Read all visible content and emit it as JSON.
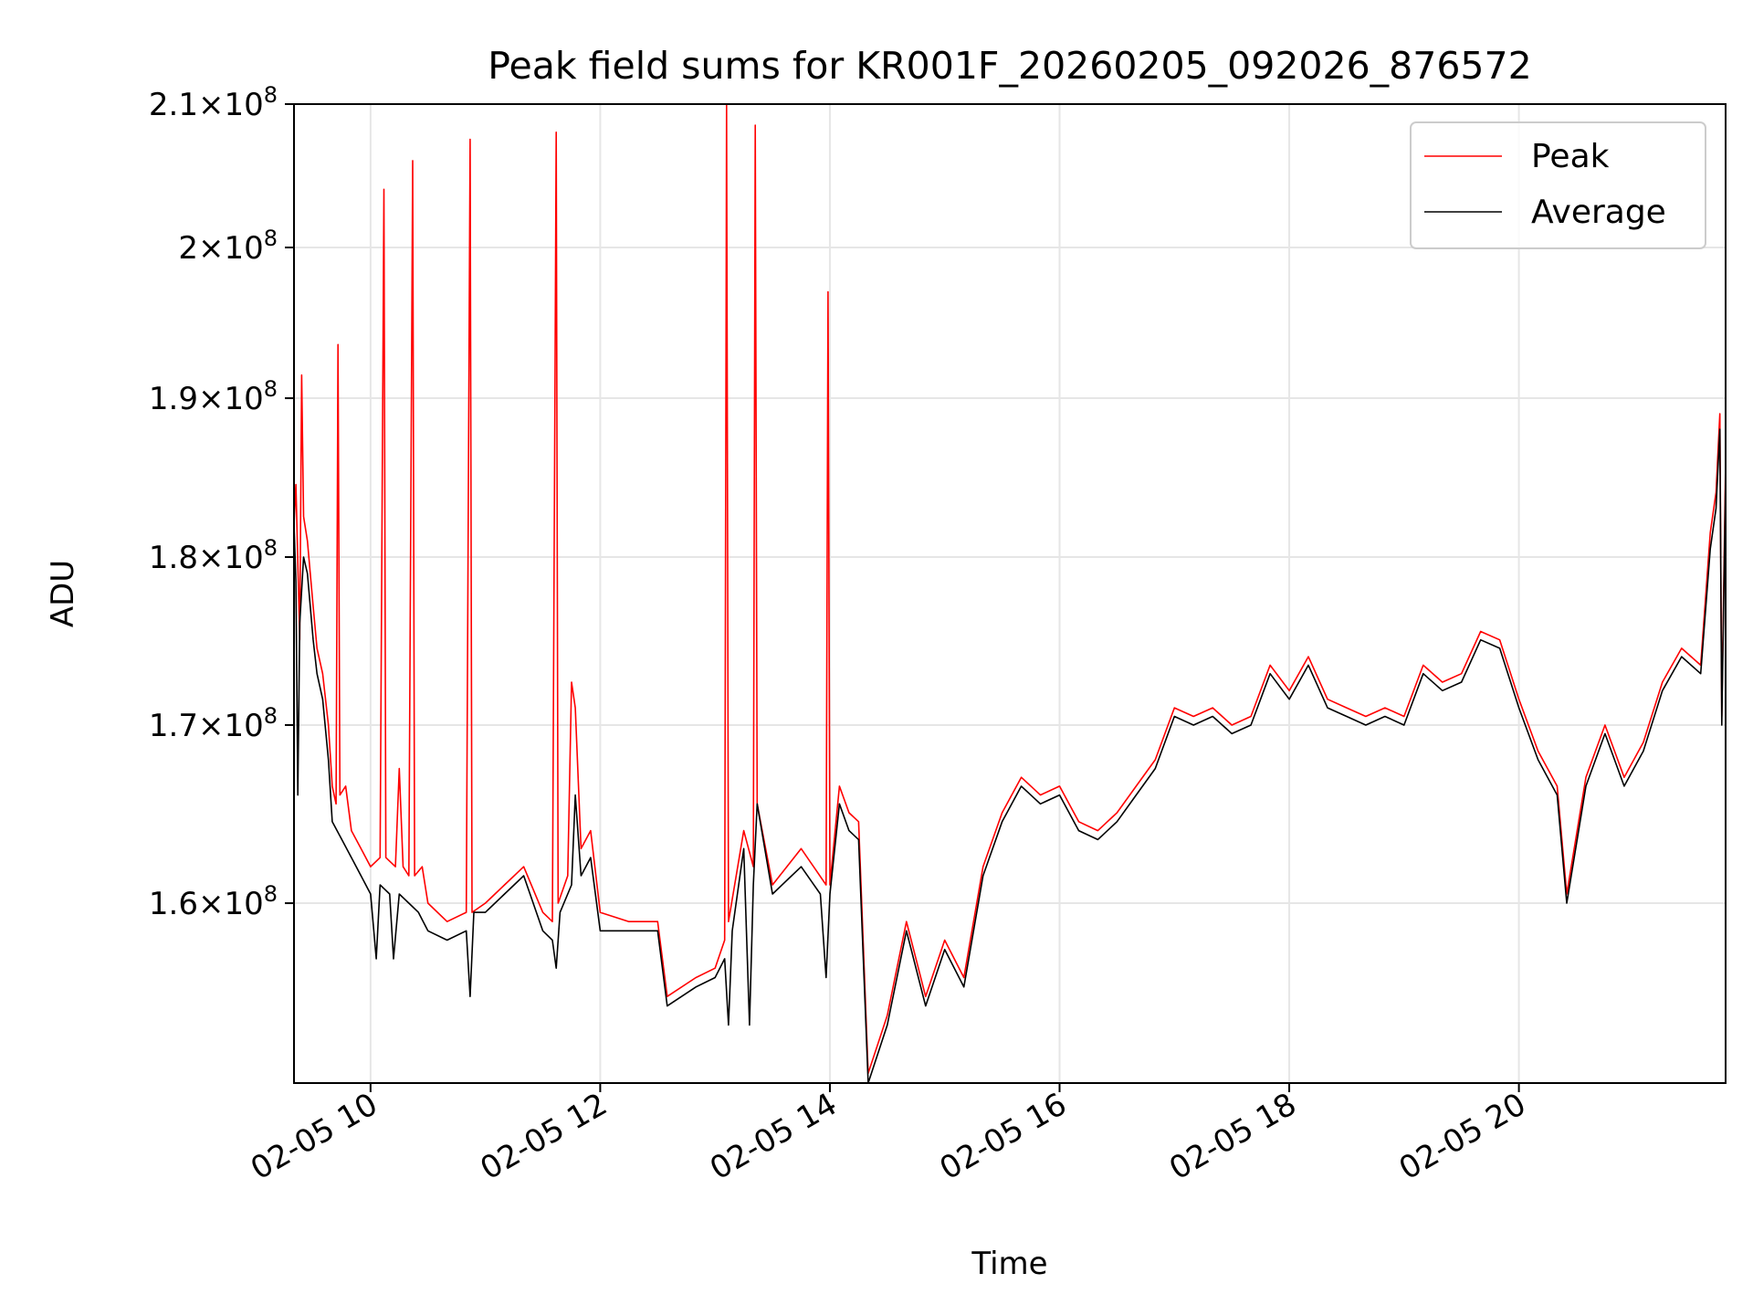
{
  "chart_data": {
    "type": "line",
    "title": "Peak field sums for KR001F_20260205_092026_876572",
    "xlabel": "Time",
    "ylabel": "ADU",
    "y_scale": "log",
    "grid": true,
    "legend_position": "top-right",
    "xlim": [
      "2026-02-05 09:20",
      "2026-02-05 21:48"
    ],
    "ylim": [
      150500000,
      210000000
    ],
    "x_ticks": [
      {
        "value": "2026-02-05 10:00",
        "label": "02-05 10"
      },
      {
        "value": "2026-02-05 12:00",
        "label": "02-05 12"
      },
      {
        "value": "2026-02-05 14:00",
        "label": "02-05 14"
      },
      {
        "value": "2026-02-05 16:00",
        "label": "02-05 16"
      },
      {
        "value": "2026-02-05 18:00",
        "label": "02-05 18"
      },
      {
        "value": "2026-02-05 20:00",
        "label": "02-05 20"
      }
    ],
    "y_ticks": [
      {
        "value": 160000000,
        "mantissa": "1.6",
        "exp": "8"
      },
      {
        "value": 170000000,
        "mantissa": "1.7",
        "exp": "8"
      },
      {
        "value": 180000000,
        "mantissa": "1.8",
        "exp": "8"
      },
      {
        "value": 190000000,
        "mantissa": "1.9",
        "exp": "8"
      },
      {
        "value": 200000000,
        "mantissa": "2",
        "exp": "8"
      },
      {
        "value": 210000000,
        "mantissa": "2.1",
        "exp": "8"
      }
    ],
    "series": [
      {
        "name": "Peak",
        "color": "#ff0000",
        "points": [
          [
            "2026-02-05 09:20",
            182000000
          ],
          [
            "2026-02-05 09:21",
            184500000
          ],
          [
            "2026-02-05 09:23",
            175000000
          ],
          [
            "2026-02-05 09:24",
            191500000
          ],
          [
            "2026-02-05 09:25",
            182500000
          ],
          [
            "2026-02-05 09:27",
            181000000
          ],
          [
            "2026-02-05 09:30",
            177000000
          ],
          [
            "2026-02-05 09:32",
            174500000
          ],
          [
            "2026-02-05 09:35",
            173000000
          ],
          [
            "2026-02-05 09:38",
            170000000
          ],
          [
            "2026-02-05 09:40",
            166500000
          ],
          [
            "2026-02-05 09:42",
            165500000
          ],
          [
            "2026-02-05 09:43",
            193500000
          ],
          [
            "2026-02-05 09:44",
            166000000
          ],
          [
            "2026-02-05 09:47",
            166500000
          ],
          [
            "2026-02-05 09:50",
            164000000
          ],
          [
            "2026-02-05 09:55",
            163000000
          ],
          [
            "2026-02-05 10:00",
            162000000
          ],
          [
            "2026-02-05 10:05",
            162500000
          ],
          [
            "2026-02-05 10:07",
            204000000
          ],
          [
            "2026-02-05 10:08",
            162500000
          ],
          [
            "2026-02-05 10:13",
            162000000
          ],
          [
            "2026-02-05 10:15",
            167500000
          ],
          [
            "2026-02-05 10:17",
            162000000
          ],
          [
            "2026-02-05 10:20",
            161500000
          ],
          [
            "2026-02-05 10:22",
            206000000
          ],
          [
            "2026-02-05 10:23",
            161500000
          ],
          [
            "2026-02-05 10:27",
            162000000
          ],
          [
            "2026-02-05 10:30",
            160000000
          ],
          [
            "2026-02-05 10:40",
            159000000
          ],
          [
            "2026-02-05 10:50",
            159500000
          ],
          [
            "2026-02-05 10:52",
            207500000
          ],
          [
            "2026-02-05 10:53",
            159500000
          ],
          [
            "2026-02-05 11:00",
            160000000
          ],
          [
            "2026-02-05 11:10",
            161000000
          ],
          [
            "2026-02-05 11:20",
            162000000
          ],
          [
            "2026-02-05 11:30",
            159500000
          ],
          [
            "2026-02-05 11:35",
            159000000
          ],
          [
            "2026-02-05 11:37",
            208000000
          ],
          [
            "2026-02-05 11:38",
            160000000
          ],
          [
            "2026-02-05 11:43",
            161500000
          ],
          [
            "2026-02-05 11:45",
            172500000
          ],
          [
            "2026-02-05 11:47",
            171000000
          ],
          [
            "2026-02-05 11:50",
            163000000
          ],
          [
            "2026-02-05 11:55",
            164000000
          ],
          [
            "2026-02-05 12:00",
            159500000
          ],
          [
            "2026-02-05 12:15",
            159000000
          ],
          [
            "2026-02-05 12:30",
            159000000
          ],
          [
            "2026-02-05 12:35",
            155000000
          ],
          [
            "2026-02-05 12:50",
            156000000
          ],
          [
            "2026-02-05 13:00",
            156500000
          ],
          [
            "2026-02-05 13:05",
            158000000
          ],
          [
            "2026-02-05 13:06",
            210000000
          ],
          [
            "2026-02-05 13:07",
            159000000
          ],
          [
            "2026-02-05 13:15",
            164000000
          ],
          [
            "2026-02-05 13:20",
            162000000
          ],
          [
            "2026-02-05 13:21",
            208500000
          ],
          [
            "2026-02-05 13:22",
            165500000
          ],
          [
            "2026-02-05 13:30",
            161000000
          ],
          [
            "2026-02-05 13:45",
            163000000
          ],
          [
            "2026-02-05 13:58",
            161000000
          ],
          [
            "2026-02-05 13:59",
            197000000
          ],
          [
            "2026-02-05 14:00",
            161000000
          ],
          [
            "2026-02-05 14:05",
            166500000
          ],
          [
            "2026-02-05 14:10",
            165000000
          ],
          [
            "2026-02-05 14:15",
            164500000
          ],
          [
            "2026-02-05 14:20",
            151000000
          ],
          [
            "2026-02-05 14:30",
            154000000
          ],
          [
            "2026-02-05 14:40",
            159000000
          ],
          [
            "2026-02-05 14:50",
            155000000
          ],
          [
            "2026-02-05 15:00",
            158000000
          ],
          [
            "2026-02-05 15:10",
            156000000
          ],
          [
            "2026-02-05 15:20",
            162000000
          ],
          [
            "2026-02-05 15:30",
            165000000
          ],
          [
            "2026-02-05 15:40",
            167000000
          ],
          [
            "2026-02-05 15:50",
            166000000
          ],
          [
            "2026-02-05 16:00",
            166500000
          ],
          [
            "2026-02-05 16:10",
            164500000
          ],
          [
            "2026-02-05 16:20",
            164000000
          ],
          [
            "2026-02-05 16:30",
            165000000
          ],
          [
            "2026-02-05 16:40",
            166500000
          ],
          [
            "2026-02-05 16:50",
            168000000
          ],
          [
            "2026-02-05 17:00",
            171000000
          ],
          [
            "2026-02-05 17:10",
            170500000
          ],
          [
            "2026-02-05 17:20",
            171000000
          ],
          [
            "2026-02-05 17:30",
            170000000
          ],
          [
            "2026-02-05 17:40",
            170500000
          ],
          [
            "2026-02-05 17:50",
            173500000
          ],
          [
            "2026-02-05 18:00",
            172000000
          ],
          [
            "2026-02-05 18:10",
            174000000
          ],
          [
            "2026-02-05 18:20",
            171500000
          ],
          [
            "2026-02-05 18:30",
            171000000
          ],
          [
            "2026-02-05 18:40",
            170500000
          ],
          [
            "2026-02-05 18:50",
            171000000
          ],
          [
            "2026-02-05 19:00",
            170500000
          ],
          [
            "2026-02-05 19:10",
            173500000
          ],
          [
            "2026-02-05 19:20",
            172500000
          ],
          [
            "2026-02-05 19:30",
            173000000
          ],
          [
            "2026-02-05 19:40",
            175500000
          ],
          [
            "2026-02-05 19:50",
            175000000
          ],
          [
            "2026-02-05 20:00",
            171500000
          ],
          [
            "2026-02-05 20:10",
            168500000
          ],
          [
            "2026-02-05 20:20",
            166500000
          ],
          [
            "2026-02-05 20:25",
            160500000
          ],
          [
            "2026-02-05 20:35",
            167000000
          ],
          [
            "2026-02-05 20:45",
            170000000
          ],
          [
            "2026-02-05 20:55",
            167000000
          ],
          [
            "2026-02-05 21:05",
            169000000
          ],
          [
            "2026-02-05 21:15",
            172500000
          ],
          [
            "2026-02-05 21:25",
            174500000
          ],
          [
            "2026-02-05 21:35",
            173500000
          ],
          [
            "2026-02-05 21:40",
            181500000
          ],
          [
            "2026-02-05 21:43",
            184000000
          ],
          [
            "2026-02-05 21:45",
            189000000
          ],
          [
            "2026-02-05 21:46",
            170500000
          ],
          [
            "2026-02-05 21:48",
            186000000
          ]
        ]
      },
      {
        "name": "Average",
        "color": "#000000",
        "points": [
          [
            "2026-02-05 09:20",
            182000000
          ],
          [
            "2026-02-05 09:21",
            178500000
          ],
          [
            "2026-02-05 09:22",
            166000000
          ],
          [
            "2026-02-05 09:23",
            176000000
          ],
          [
            "2026-02-05 09:25",
            180000000
          ],
          [
            "2026-02-05 09:27",
            179000000
          ],
          [
            "2026-02-05 09:30",
            175000000
          ],
          [
            "2026-02-05 09:32",
            173000000
          ],
          [
            "2026-02-05 09:35",
            171500000
          ],
          [
            "2026-02-05 09:38",
            168000000
          ],
          [
            "2026-02-05 09:40",
            164500000
          ],
          [
            "2026-02-05 09:45",
            163500000
          ],
          [
            "2026-02-05 09:50",
            162500000
          ],
          [
            "2026-02-05 09:55",
            161500000
          ],
          [
            "2026-02-05 10:00",
            160500000
          ],
          [
            "2026-02-05 10:03",
            157000000
          ],
          [
            "2026-02-05 10:05",
            161000000
          ],
          [
            "2026-02-05 10:10",
            160500000
          ],
          [
            "2026-02-05 10:12",
            157000000
          ],
          [
            "2026-02-05 10:15",
            160500000
          ],
          [
            "2026-02-05 10:20",
            160000000
          ],
          [
            "2026-02-05 10:25",
            159500000
          ],
          [
            "2026-02-05 10:30",
            158500000
          ],
          [
            "2026-02-05 10:40",
            158000000
          ],
          [
            "2026-02-05 10:50",
            158500000
          ],
          [
            "2026-02-05 10:52",
            155000000
          ],
          [
            "2026-02-05 10:54",
            159500000
          ],
          [
            "2026-02-05 11:00",
            159500000
          ],
          [
            "2026-02-05 11:10",
            160500000
          ],
          [
            "2026-02-05 11:20",
            161500000
          ],
          [
            "2026-02-05 11:30",
            158500000
          ],
          [
            "2026-02-05 11:35",
            158000000
          ],
          [
            "2026-02-05 11:37",
            156500000
          ],
          [
            "2026-02-05 11:39",
            159500000
          ],
          [
            "2026-02-05 11:45",
            161000000
          ],
          [
            "2026-02-05 11:47",
            166000000
          ],
          [
            "2026-02-05 11:50",
            161500000
          ],
          [
            "2026-02-05 11:55",
            162500000
          ],
          [
            "2026-02-05 12:00",
            158500000
          ],
          [
            "2026-02-05 12:15",
            158500000
          ],
          [
            "2026-02-05 12:30",
            158500000
          ],
          [
            "2026-02-05 12:35",
            154500000
          ],
          [
            "2026-02-05 12:50",
            155500000
          ],
          [
            "2026-02-05 13:00",
            156000000
          ],
          [
            "2026-02-05 13:05",
            157000000
          ],
          [
            "2026-02-05 13:07",
            153500000
          ],
          [
            "2026-02-05 13:09",
            158500000
          ],
          [
            "2026-02-05 13:15",
            163000000
          ],
          [
            "2026-02-05 13:18",
            153500000
          ],
          [
            "2026-02-05 13:20",
            161000000
          ],
          [
            "2026-02-05 13:22",
            165500000
          ],
          [
            "2026-02-05 13:30",
            160500000
          ],
          [
            "2026-02-05 13:45",
            162000000
          ],
          [
            "2026-02-05 13:55",
            160500000
          ],
          [
            "2026-02-05 13:58",
            156000000
          ],
          [
            "2026-02-05 14:00",
            160500000
          ],
          [
            "2026-02-05 14:05",
            165500000
          ],
          [
            "2026-02-05 14:10",
            164000000
          ],
          [
            "2026-02-05 14:15",
            163500000
          ],
          [
            "2026-02-05 14:20",
            150500000
          ],
          [
            "2026-02-05 14:30",
            153500000
          ],
          [
            "2026-02-05 14:40",
            158500000
          ],
          [
            "2026-02-05 14:50",
            154500000
          ],
          [
            "2026-02-05 15:00",
            157500000
          ],
          [
            "2026-02-05 15:10",
            155500000
          ],
          [
            "2026-02-05 15:20",
            161500000
          ],
          [
            "2026-02-05 15:30",
            164500000
          ],
          [
            "2026-02-05 15:40",
            166500000
          ],
          [
            "2026-02-05 15:50",
            165500000
          ],
          [
            "2026-02-05 16:00",
            166000000
          ],
          [
            "2026-02-05 16:10",
            164000000
          ],
          [
            "2026-02-05 16:20",
            163500000
          ],
          [
            "2026-02-05 16:30",
            164500000
          ],
          [
            "2026-02-05 16:40",
            166000000
          ],
          [
            "2026-02-05 16:50",
            167500000
          ],
          [
            "2026-02-05 17:00",
            170500000
          ],
          [
            "2026-02-05 17:10",
            170000000
          ],
          [
            "2026-02-05 17:20",
            170500000
          ],
          [
            "2026-02-05 17:30",
            169500000
          ],
          [
            "2026-02-05 17:40",
            170000000
          ],
          [
            "2026-02-05 17:50",
            173000000
          ],
          [
            "2026-02-05 18:00",
            171500000
          ],
          [
            "2026-02-05 18:10",
            173500000
          ],
          [
            "2026-02-05 18:20",
            171000000
          ],
          [
            "2026-02-05 18:30",
            170500000
          ],
          [
            "2026-02-05 18:40",
            170000000
          ],
          [
            "2026-02-05 18:50",
            170500000
          ],
          [
            "2026-02-05 19:00",
            170000000
          ],
          [
            "2026-02-05 19:10",
            173000000
          ],
          [
            "2026-02-05 19:20",
            172000000
          ],
          [
            "2026-02-05 19:30",
            172500000
          ],
          [
            "2026-02-05 19:40",
            175000000
          ],
          [
            "2026-02-05 19:50",
            174500000
          ],
          [
            "2026-02-05 20:00",
            171000000
          ],
          [
            "2026-02-05 20:10",
            168000000
          ],
          [
            "2026-02-05 20:20",
            166000000
          ],
          [
            "2026-02-05 20:25",
            160000000
          ],
          [
            "2026-02-05 20:35",
            166500000
          ],
          [
            "2026-02-05 20:45",
            169500000
          ],
          [
            "2026-02-05 20:55",
            166500000
          ],
          [
            "2026-02-05 21:05",
            168500000
          ],
          [
            "2026-02-05 21:15",
            172000000
          ],
          [
            "2026-02-05 21:25",
            174000000
          ],
          [
            "2026-02-05 21:35",
            173000000
          ],
          [
            "2026-02-05 21:40",
            180500000
          ],
          [
            "2026-02-05 21:43",
            183000000
          ],
          [
            "2026-02-05 21:45",
            188000000
          ],
          [
            "2026-02-05 21:46",
            170000000
          ],
          [
            "2026-02-05 21:48",
            185000000
          ]
        ]
      }
    ]
  }
}
